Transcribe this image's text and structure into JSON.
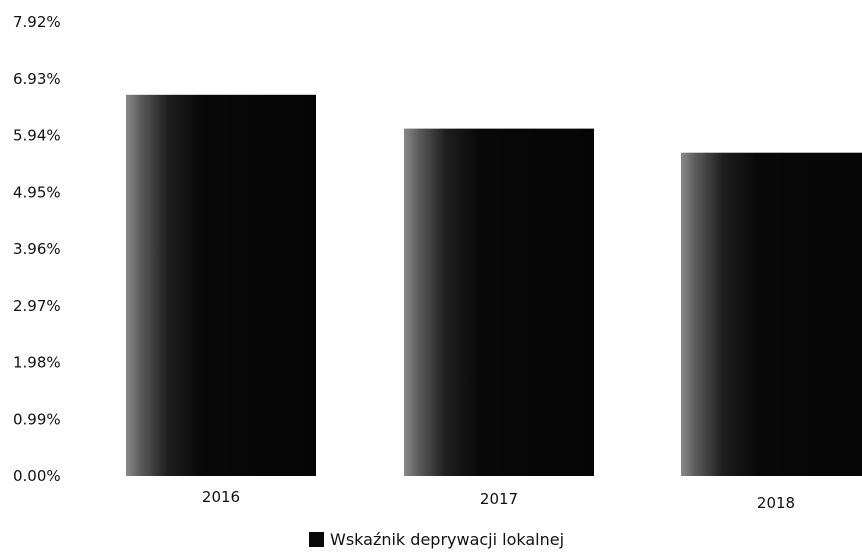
{
  "chart_data": {
    "type": "bar",
    "categories": [
      "2016",
      "2017",
      "2018"
    ],
    "series": [
      {
        "name": "Wskaźnik deprywacji lokalnej",
        "values": [
          6.65,
          6.06,
          5.64
        ],
        "color": "#0a0a0a"
      }
    ],
    "y_ticks": [
      "0.00%",
      "0.99%",
      "1.98%",
      "2.97%",
      "3.96%",
      "4.95%",
      "5.94%",
      "6.93%",
      "7.92%"
    ],
    "y_tick_values": [
      0,
      0.99,
      1.98,
      2.97,
      3.96,
      4.95,
      5.94,
      6.93,
      7.92
    ],
    "ylim": [
      0,
      7.92
    ],
    "grid": false,
    "legend_position": "bottom-center",
    "title": "",
    "xlabel": "",
    "ylabel": ""
  }
}
